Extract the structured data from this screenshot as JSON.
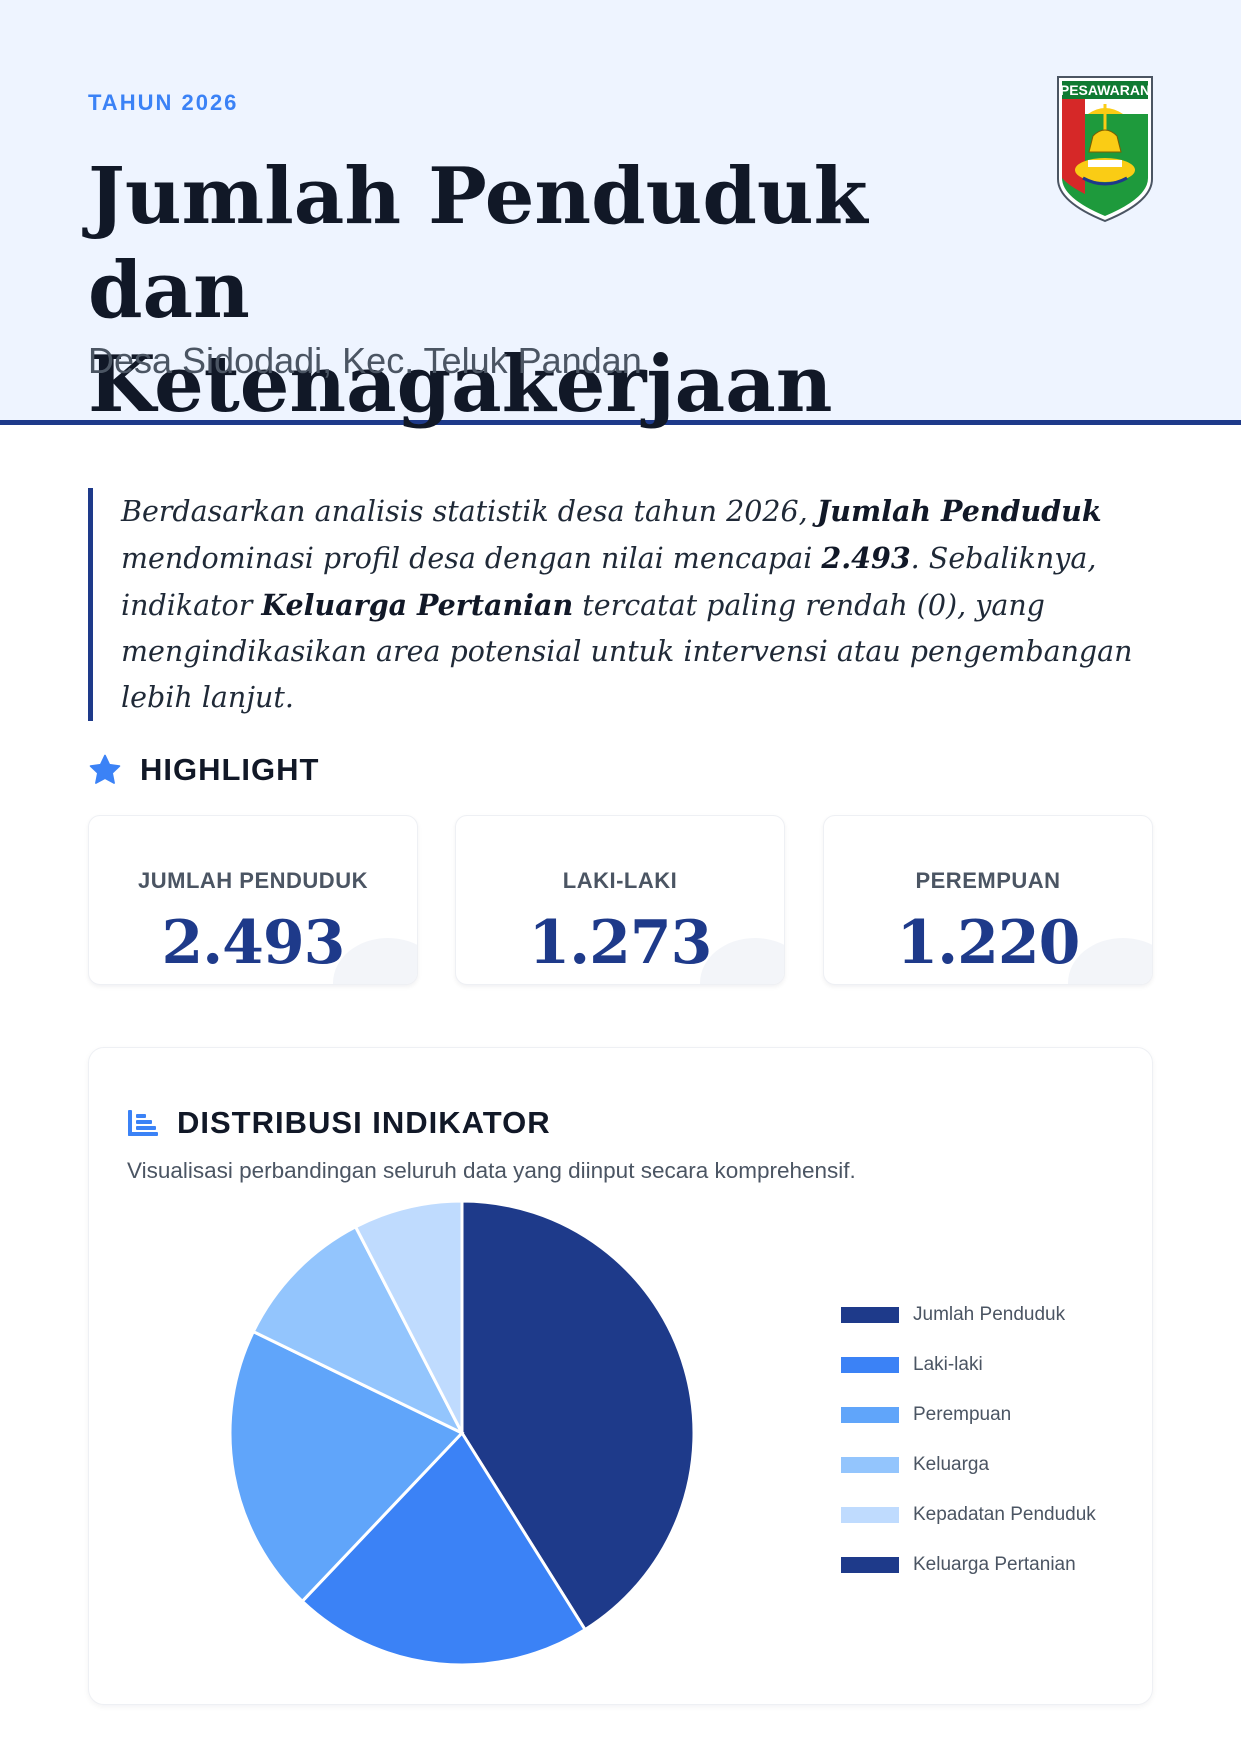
{
  "header": {
    "eyebrow": "TAHUN 2026",
    "title_line1": "Jumlah Penduduk",
    "title_line2": "dan Ketenagakerjaan",
    "subtitle": "Desa Sidodadi, Kec. Teluk Pandan",
    "logo_text": "PESAWARAN"
  },
  "summary": {
    "p1": "Berdasarkan analisis statistik desa tahun 2026, ",
    "b1": "Jumlah Penduduk",
    "p2": " mendominasi profil desa dengan nilai mencapai ",
    "b2": "2.493",
    "p3": ". Sebaliknya, indikator ",
    "b3": "Keluarga Pertanian",
    "p4": " tercatat paling rendah (0), yang mengindikasikan area potensial untuk intervensi atau pengembangan lebih lanjut."
  },
  "highlight": {
    "heading": "HIGHLIGHT",
    "icon": "star-icon",
    "cards": [
      {
        "label": "JUMLAH PENDUDUK",
        "value": "2.493"
      },
      {
        "label": "LAKI-LAKI",
        "value": "1.273"
      },
      {
        "label": "PEREMPUAN",
        "value": "1.220"
      }
    ]
  },
  "distribution": {
    "heading": "DISTRIBUSI INDIKATOR",
    "icon": "bar-chart-icon",
    "description": "Visualisasi perbandingan seluruh data yang diinput secara komprehensif."
  },
  "chart_data": {
    "type": "pie",
    "labels": [
      "Jumlah Penduduk",
      "Laki-laki",
      "Perempuan",
      "Keluarga",
      "Kepadatan Penduduk",
      "Keluarga Pertanian"
    ],
    "values": [
      2493,
      1273,
      1220,
      620,
      460,
      0
    ],
    "colors": [
      "#1e3a8a",
      "#3b82f6",
      "#60a5fa",
      "#93c5fd",
      "#bfdbfe",
      "#1e3a8a"
    ],
    "legend_position": "right"
  }
}
